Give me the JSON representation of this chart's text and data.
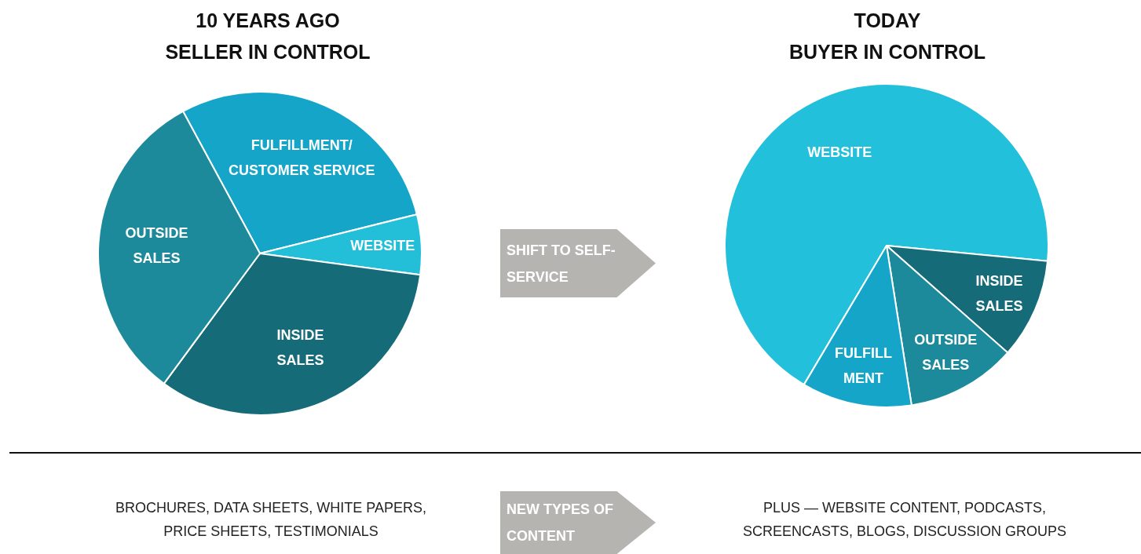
{
  "chart_data": [
    {
      "type": "pie",
      "title": "10 YEARS AGO",
      "subtitle": "SELLER IN CONTROL",
      "categories": [
        "FULFILLMENT/\nCUSTOMER SERVICE",
        "WEBSITE",
        "INSIDE\nSALES",
        "OUTSIDE\nSALES"
      ],
      "values": [
        29,
        6,
        33,
        32
      ],
      "colors": [
        "#15a5c9",
        "#23bfd9",
        "#156b78",
        "#1c8a9a"
      ],
      "legend": false,
      "annotations": [
        "BROCHURES, DATA SHEETS, WHITE PAPERS, PRICE SHEETS, TESTIMONIALS"
      ]
    },
    {
      "type": "pie",
      "title": "TODAY",
      "subtitle": "BUYER IN CONTROL",
      "categories": [
        "WEBSITE",
        "INSIDE\nSALES",
        "OUTSIDE\nSALES",
        "FULFILL\nMENT"
      ],
      "values": [
        68,
        10,
        11,
        11
      ],
      "colors": [
        "#22c0da",
        "#156b78",
        "#1c8a9a",
        "#15a5c9"
      ],
      "legend": false,
      "annotations": [
        "PLUS — WEBSITE CONTENT, PODCASTS, SCREENCASTS, BLOGS, DISCUSSION GROUPS"
      ]
    },
    {
      "type": "other",
      "annotations": [
        "SHIFT TO SELF-SERVICE",
        "NEW TYPES OF CONTENT"
      ]
    }
  ]
}
